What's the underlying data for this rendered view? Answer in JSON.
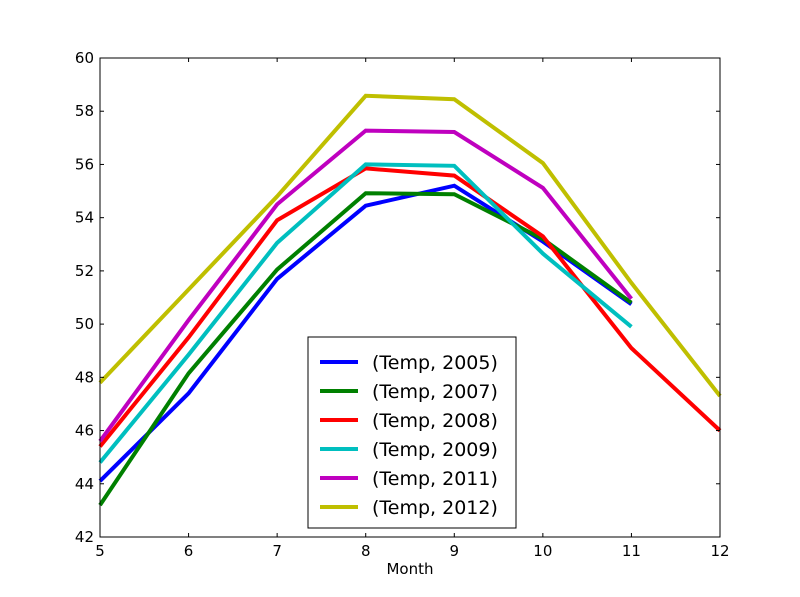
{
  "chart_data": {
    "type": "line",
    "title": "",
    "xlabel": "Month",
    "ylabel": "",
    "xlim": [
      5,
      12
    ],
    "ylim": [
      42,
      60
    ],
    "xticks": [
      5,
      6,
      7,
      8,
      9,
      10,
      11,
      12
    ],
    "yticks": [
      42,
      44,
      46,
      48,
      50,
      52,
      54,
      56,
      58,
      60
    ],
    "grid": false,
    "legend": "lower-center",
    "series": [
      {
        "name": "(Temp, 2005)",
        "color": "#0000ff",
        "x": [
          5,
          6,
          7,
          8,
          9,
          10,
          11
        ],
        "values": [
          44.1,
          47.4,
          51.7,
          54.45,
          55.2,
          53.1,
          50.75
        ]
      },
      {
        "name": "(Temp, 2007)",
        "color": "#008000",
        "x": [
          5,
          6,
          7,
          8,
          9,
          10,
          11
        ],
        "values": [
          43.2,
          48.15,
          52.05,
          54.92,
          54.88,
          53.2,
          50.8
        ]
      },
      {
        "name": "(Temp, 2008)",
        "color": "#ff0000",
        "x": [
          5,
          6,
          7,
          8,
          9,
          10,
          11,
          12
        ],
        "values": [
          45.4,
          49.5,
          53.9,
          55.85,
          55.58,
          53.3,
          49.1,
          46.0
        ]
      },
      {
        "name": "(Temp, 2009)",
        "color": "#00bfbf",
        "x": [
          5,
          6,
          7,
          8,
          9,
          10,
          11
        ],
        "values": [
          44.8,
          48.85,
          53.05,
          56.0,
          55.95,
          52.65,
          49.9
        ]
      },
      {
        "name": "(Temp, 2011)",
        "color": "#bf00bf",
        "x": [
          5,
          6,
          7,
          8,
          9,
          10,
          11
        ],
        "values": [
          45.6,
          50.15,
          54.5,
          57.27,
          57.22,
          55.12,
          50.95
        ]
      },
      {
        "name": "(Temp, 2012)",
        "color": "#bfbf00",
        "x": [
          5,
          6,
          7,
          8,
          9,
          10,
          11,
          12
        ],
        "values": [
          47.8,
          51.3,
          54.8,
          58.58,
          58.45,
          56.05,
          51.55,
          47.3
        ]
      }
    ]
  }
}
